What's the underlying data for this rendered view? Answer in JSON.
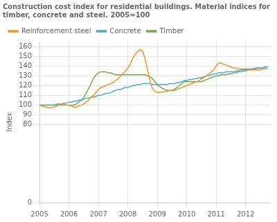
{
  "chart_data": {
    "type": "line",
    "title": [
      "Construction cost index for residential buildings. Material indices for",
      "timber, concrete and steel. 2005=100"
    ],
    "y_label": "Index",
    "xlim": [
      2005.0,
      2012.83
    ],
    "xticks": [
      2005,
      2006,
      2007,
      2008,
      2009,
      2010,
      2011,
      2012
    ],
    "ylim": [
      0,
      165
    ],
    "yticks": [
      0,
      80,
      90,
      100,
      110,
      120,
      130,
      140,
      150,
      160
    ],
    "grid": true,
    "legend": "upper left",
    "x": [
      2005.0,
      2005.08,
      2005.17,
      2005.25,
      2005.33,
      2005.42,
      2005.5,
      2005.58,
      2005.67,
      2005.75,
      2005.83,
      2005.92,
      2006.0,
      2006.08,
      2006.17,
      2006.25,
      2006.33,
      2006.42,
      2006.5,
      2006.58,
      2006.67,
      2006.75,
      2006.83,
      2006.92,
      2007.0,
      2007.08,
      2007.17,
      2007.25,
      2007.33,
      2007.42,
      2007.5,
      2007.58,
      2007.67,
      2007.75,
      2007.83,
      2007.92,
      2008.0,
      2008.08,
      2008.17,
      2008.25,
      2008.33,
      2008.42,
      2008.5,
      2008.58,
      2008.67,
      2008.75,
      2008.83,
      2008.92,
      2009.0,
      2009.08,
      2009.17,
      2009.25,
      2009.33,
      2009.42,
      2009.5,
      2009.58,
      2009.67,
      2009.75,
      2009.83,
      2009.92,
      2010.0,
      2010.08,
      2010.17,
      2010.25,
      2010.33,
      2010.42,
      2010.5,
      2010.58,
      2010.67,
      2010.75,
      2010.83,
      2010.92,
      2011.0,
      2011.08,
      2011.17,
      2011.25,
      2011.33,
      2011.42,
      2011.5,
      2011.58,
      2011.67,
      2011.75,
      2011.83,
      2011.92,
      2012.0,
      2012.08,
      2012.17,
      2012.25,
      2012.33,
      2012.42,
      2012.5,
      2012.58,
      2012.67,
      2012.75
    ],
    "series": [
      {
        "name": "Reinforcement steel",
        "color": "#f5922e",
        "values": [
          100,
          99,
          98,
          98,
          97,
          97,
          98,
          99,
          100,
          101,
          101,
          100,
          100,
          99,
          98,
          98,
          99,
          100,
          101,
          103,
          105,
          108,
          110,
          113,
          116,
          118,
          119,
          120,
          121,
          122,
          123,
          125,
          127,
          130,
          132,
          135,
          138,
          142,
          148,
          152,
          155,
          157,
          155,
          148,
          136,
          125,
          117,
          114,
          113,
          113,
          113,
          114,
          114,
          115,
          115,
          115,
          116,
          117,
          118,
          119,
          120,
          121,
          122,
          123,
          124,
          125,
          127,
          128,
          130,
          132,
          134,
          136,
          140,
          143,
          143,
          142,
          141,
          140,
          139,
          138,
          138,
          137,
          137,
          137,
          137,
          137,
          136,
          136,
          136,
          136,
          136,
          137,
          137,
          137
        ]
      },
      {
        "name": "Concrete",
        "color": "#4bacc6",
        "values": [
          100,
          100,
          100,
          100,
          100,
          100,
          100,
          101,
          101,
          101,
          102,
          102,
          103,
          103,
          104,
          104,
          105,
          105,
          106,
          107,
          107,
          108,
          108,
          109,
          110,
          110,
          111,
          112,
          112,
          113,
          114,
          115,
          116,
          116,
          117,
          118,
          118,
          119,
          120,
          120,
          121,
          121,
          122,
          122,
          122,
          122,
          121,
          121,
          121,
          121,
          121,
          121,
          121,
          122,
          122,
          122,
          123,
          123,
          124,
          125,
          125,
          126,
          126,
          127,
          127,
          128,
          128,
          129,
          130,
          130,
          131,
          132,
          132,
          133,
          133,
          133,
          134,
          134,
          134,
          134,
          135,
          135,
          136,
          136,
          136,
          136,
          137,
          137,
          138,
          138,
          138,
          138,
          139,
          139
        ]
      },
      {
        "name": "Timber",
        "color": "#70ad47",
        "values": [
          100,
          100,
          100,
          100,
          100,
          100,
          100,
          100,
          100,
          100,
          100,
          100,
          100,
          100,
          100,
          101,
          103,
          105,
          108,
          112,
          117,
          122,
          127,
          131,
          133,
          134,
          134,
          134,
          133,
          133,
          132,
          131,
          131,
          131,
          131,
          131,
          131,
          131,
          131,
          131,
          131,
          131,
          131,
          131,
          130,
          129,
          127,
          124,
          121,
          119,
          117,
          116,
          115,
          115,
          115,
          116,
          118,
          120,
          122,
          124,
          124,
          124,
          124,
          124,
          124,
          124,
          124,
          125,
          126,
          127,
          128,
          129,
          130,
          130,
          131,
          131,
          131,
          132,
          132,
          133,
          133,
          134,
          134,
          135,
          135,
          136,
          136,
          137,
          137,
          138,
          138,
          138,
          139,
          139
        ]
      }
    ]
  }
}
